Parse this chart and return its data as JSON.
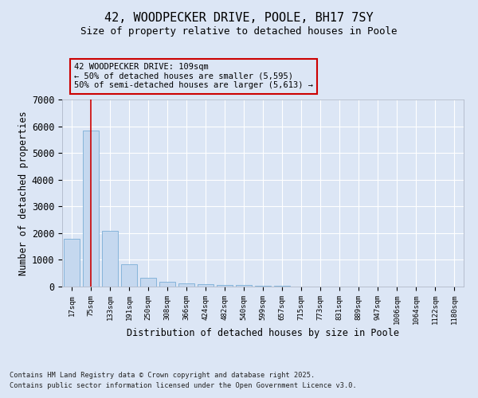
{
  "title_line1": "42, WOODPECKER DRIVE, POOLE, BH17 7SY",
  "title_line2": "Size of property relative to detached houses in Poole",
  "xlabel": "Distribution of detached houses by size in Poole",
  "ylabel": "Number of detached properties",
  "categories": [
    "17sqm",
    "75sqm",
    "133sqm",
    "191sqm",
    "250sqm",
    "308sqm",
    "366sqm",
    "424sqm",
    "482sqm",
    "540sqm",
    "599sqm",
    "657sqm",
    "715sqm",
    "773sqm",
    "831sqm",
    "889sqm",
    "947sqm",
    "1006sqm",
    "1064sqm",
    "1122sqm",
    "1180sqm"
  ],
  "values": [
    1780,
    5850,
    2080,
    830,
    340,
    185,
    110,
    90,
    70,
    55,
    20,
    15,
    0,
    0,
    0,
    0,
    0,
    0,
    0,
    0,
    0
  ],
  "bar_color": "#c5d8ef",
  "bar_edge_color": "#7aaed6",
  "vline_x_index": 1,
  "vline_color": "#cc0000",
  "ylim": [
    0,
    7000
  ],
  "yticks": [
    0,
    1000,
    2000,
    3000,
    4000,
    5000,
    6000,
    7000
  ],
  "annotation_title": "42 WOODPECKER DRIVE: 109sqm",
  "annotation_line1": "← 50% of detached houses are smaller (5,595)",
  "annotation_line2": "50% of semi-detached houses are larger (5,613) →",
  "annotation_box_color": "#cc0000",
  "background_color": "#dce6f5",
  "plot_bg_color": "#dce6f5",
  "grid_color": "#ffffff",
  "footnote1": "Contains HM Land Registry data © Crown copyright and database right 2025.",
  "footnote2": "Contains public sector information licensed under the Open Government Licence v3.0."
}
